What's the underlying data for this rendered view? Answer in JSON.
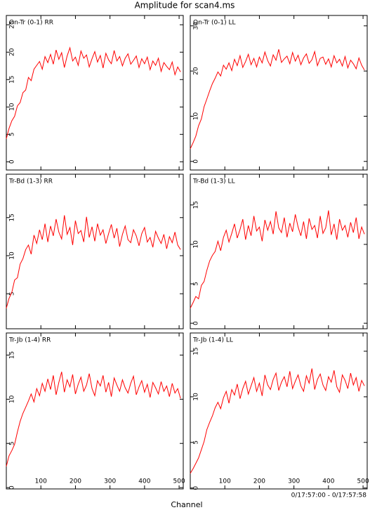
{
  "title": "Amplitude for scan4.ms",
  "xlabel": "Channel",
  "time_range": "0/17:57:00 - 0/17:57:58",
  "chart_data": [
    {
      "type": "line",
      "title": "On-Tr (0-1) RR",
      "color": "#ff0000",
      "xlim": [
        0,
        512
      ],
      "xticks": [
        100,
        200,
        300,
        400,
        500
      ],
      "show_xtick_labels": false,
      "ylim": [
        -1.5,
        26.7
      ],
      "yticks": [
        0,
        5,
        10,
        15,
        20,
        25
      ],
      "x": [
        0,
        8,
        16,
        24,
        32,
        40,
        48,
        56,
        64,
        72,
        80,
        88,
        96,
        104,
        112,
        120,
        128,
        136,
        144,
        152,
        160,
        168,
        176,
        184,
        192,
        200,
        208,
        216,
        224,
        232,
        240,
        248,
        256,
        264,
        272,
        280,
        288,
        296,
        304,
        312,
        320,
        328,
        336,
        344,
        352,
        360,
        368,
        376,
        384,
        392,
        400,
        408,
        416,
        424,
        432,
        440,
        448,
        456,
        464,
        472,
        480,
        488,
        496,
        504
      ],
      "values": [
        4.2,
        6.1,
        7.5,
        8.3,
        10.2,
        10.8,
        12.6,
        13.1,
        15.4,
        14.8,
        16.9,
        17.6,
        18.3,
        16.9,
        19.2,
        18.1,
        19.6,
        17.8,
        20.4,
        18.7,
        19.9,
        17.2,
        19.3,
        20.8,
        18.4,
        19.1,
        17.6,
        20.2,
        18.9,
        19.5,
        17.3,
        18.8,
        20.1,
        18.2,
        19.4,
        17.1,
        19.8,
        18.6,
        17.9,
        20.3,
        18.4,
        19.2,
        17.5,
        18.9,
        19.7,
        17.8,
        18.5,
        19.3,
        17.2,
        18.8,
        17.9,
        19.1,
        16.8,
        18.4,
        17.6,
        18.9,
        16.5,
        18.1,
        17.4,
        16.8,
        18.2,
        15.9,
        17.3,
        16.4
      ]
    },
    {
      "type": "line",
      "title": "On-Tr (0-1) LL",
      "color": "#ff0000",
      "xlim": [
        0,
        512
      ],
      "xticks": [
        100,
        200,
        300,
        400,
        500
      ],
      "show_xtick_labels": false,
      "ylim": [
        -1.9,
        32.3
      ],
      "yticks": [
        0,
        10,
        20,
        30
      ],
      "x": [
        0,
        8,
        16,
        24,
        32,
        40,
        48,
        56,
        64,
        72,
        80,
        88,
        96,
        104,
        112,
        120,
        128,
        136,
        144,
        152,
        160,
        168,
        176,
        184,
        192,
        200,
        208,
        216,
        224,
        232,
        240,
        248,
        256,
        264,
        272,
        280,
        288,
        296,
        304,
        312,
        320,
        328,
        336,
        344,
        352,
        360,
        368,
        376,
        384,
        392,
        400,
        408,
        416,
        424,
        432,
        440,
        448,
        456,
        464,
        472,
        480,
        488,
        496,
        504
      ],
      "values": [
        2.8,
        4.1,
        5.6,
        7.9,
        9.4,
        12.1,
        13.8,
        15.6,
        17.2,
        18.4,
        19.8,
        18.9,
        21.3,
        20.4,
        21.8,
        20.1,
        22.6,
        21.2,
        23.4,
        20.8,
        22.1,
        23.7,
        21.4,
        22.8,
        20.9,
        23.1,
        21.8,
        24.2,
        22.3,
        21.1,
        23.6,
        22.4,
        24.8,
        21.9,
        22.7,
        23.3,
        21.6,
        24.1,
        22.2,
        23.5,
        21.4,
        22.9,
        23.8,
        21.7,
        22.5,
        24.3,
        21.2,
        22.8,
        23.1,
        21.5,
        22.7,
        20.9,
        23.4,
        21.8,
        22.6,
        21.1,
        23.2,
        20.7,
        22.4,
        21.6,
        20.5,
        22.9,
        21.3,
        20.2
      ]
    },
    {
      "type": "line",
      "title": "Tr-Bd (1-3) RR",
      "color": "#ff0000",
      "xlim": [
        0,
        512
      ],
      "xticks": [
        100,
        200,
        300,
        400,
        500
      ],
      "show_xtick_labels": false,
      "ylim": [
        0.4,
        20.7
      ],
      "yticks": [
        5,
        10,
        15
      ],
      "x": [
        0,
        8,
        16,
        24,
        32,
        40,
        48,
        56,
        64,
        72,
        80,
        88,
        96,
        104,
        112,
        120,
        128,
        136,
        144,
        152,
        160,
        168,
        176,
        184,
        192,
        200,
        208,
        216,
        224,
        232,
        240,
        248,
        256,
        264,
        272,
        280,
        288,
        296,
        304,
        312,
        320,
        328,
        336,
        344,
        352,
        360,
        368,
        376,
        384,
        392,
        400,
        408,
        416,
        424,
        432,
        440,
        448,
        456,
        464,
        472,
        480,
        488,
        496,
        504
      ],
      "values": [
        3.1,
        4.4,
        5.2,
        6.8,
        7.1,
        8.9,
        9.6,
        10.8,
        11.4,
        10.2,
        12.7,
        11.6,
        13.4,
        12.1,
        14.2,
        11.8,
        13.9,
        12.6,
        14.8,
        13.1,
        12.2,
        15.3,
        12.8,
        13.7,
        11.4,
        14.6,
        12.9,
        13.3,
        11.8,
        15.1,
        12.4,
        13.8,
        11.9,
        14.2,
        12.7,
        13.4,
        11.6,
        12.9,
        14.1,
        12.3,
        13.6,
        11.2,
        12.8,
        13.9,
        12.1,
        11.7,
        13.4,
        12.6,
        11.3,
        12.9,
        13.7,
        11.8,
        12.4,
        11.1,
        13.2,
        12.3,
        11.6,
        12.8,
        10.9,
        12.5,
        11.7,
        13.1,
        11.4,
        10.8
      ]
    },
    {
      "type": "line",
      "title": "Tr-Bd (1-3) LL",
      "color": "#ff0000",
      "xlim": [
        0,
        512
      ],
      "xticks": [
        100,
        200,
        300,
        400,
        500
      ],
      "show_xtick_labels": false,
      "ylim": [
        -0.7,
        18.9
      ],
      "yticks": [
        0,
        5,
        10,
        15
      ],
      "x": [
        0,
        8,
        16,
        24,
        32,
        40,
        48,
        56,
        64,
        72,
        80,
        88,
        96,
        104,
        112,
        120,
        128,
        136,
        144,
        152,
        160,
        168,
        176,
        184,
        192,
        200,
        208,
        216,
        224,
        232,
        240,
        248,
        256,
        264,
        272,
        280,
        288,
        296,
        304,
        312,
        320,
        328,
        336,
        344,
        352,
        360,
        368,
        376,
        384,
        392,
        400,
        408,
        416,
        424,
        432,
        440,
        448,
        456,
        464,
        472,
        480,
        488,
        496,
        504
      ],
      "values": [
        1.9,
        2.6,
        3.4,
        3.1,
        4.8,
        5.3,
        6.7,
        7.9,
        8.6,
        9.1,
        10.4,
        9.2,
        10.9,
        11.8,
        10.3,
        11.4,
        12.6,
        10.8,
        11.9,
        13.2,
        10.6,
        12.4,
        11.1,
        13.6,
        11.7,
        12.2,
        10.4,
        13.1,
        11.8,
        12.9,
        11.3,
        14.2,
        12.1,
        11.5,
        13.4,
        10.9,
        12.7,
        11.6,
        13.8,
        12.2,
        11.1,
        12.9,
        10.7,
        13.3,
        11.9,
        12.4,
        10.8,
        13.6,
        11.4,
        12.1,
        14.3,
        11.2,
        12.6,
        10.6,
        13.2,
        11.8,
        12.4,
        10.9,
        12.8,
        11.5,
        13.4,
        10.7,
        12.2,
        11.3
      ]
    },
    {
      "type": "line",
      "title": "Tr-Jb (1-4) RR",
      "color": "#ff0000",
      "xlim": [
        0,
        512
      ],
      "xticks": [
        100,
        200,
        300,
        400,
        500
      ],
      "show_xtick_labels": true,
      "ylim": [
        -0.15,
        17.5
      ],
      "yticks": [
        0,
        5,
        10,
        15
      ],
      "x": [
        0,
        8,
        16,
        24,
        32,
        40,
        48,
        56,
        64,
        72,
        80,
        88,
        96,
        104,
        112,
        120,
        128,
        136,
        144,
        152,
        160,
        168,
        176,
        184,
        192,
        200,
        208,
        216,
        224,
        232,
        240,
        248,
        256,
        264,
        272,
        280,
        288,
        296,
        304,
        312,
        320,
        328,
        336,
        344,
        352,
        360,
        368,
        376,
        384,
        392,
        400,
        408,
        416,
        424,
        432,
        440,
        448,
        456,
        464,
        472,
        480,
        488,
        496,
        504
      ],
      "values": [
        2.4,
        3.6,
        4.2,
        4.9,
        6.3,
        7.5,
        8.4,
        9.1,
        9.8,
        10.6,
        9.7,
        11.2,
        10.4,
        11.8,
        10.9,
        12.3,
        11.1,
        12.7,
        10.5,
        11.9,
        13.1,
        10.8,
        12.2,
        11.4,
        12.8,
        10.6,
        11.7,
        12.5,
        10.9,
        11.6,
        12.9,
        11.2,
        10.4,
        12.1,
        11.5,
        12.7,
        10.8,
        11.9,
        10.3,
        12.4,
        11.6,
        10.9,
        12.2,
        11.3,
        10.7,
        11.8,
        12.6,
        10.5,
        11.4,
        12.1,
        10.8,
        11.7,
        10.2,
        11.9,
        11.3,
        10.6,
        12.0,
        10.9,
        11.5,
        10.3,
        11.8,
        10.7,
        11.2,
        10.1
      ]
    },
    {
      "type": "line",
      "title": "Tr-Jb (1-4) LL",
      "color": "#ff0000",
      "xlim": [
        0,
        512
      ],
      "xticks": [
        100,
        200,
        300,
        400,
        500
      ],
      "show_xtick_labels": true,
      "ylim": [
        -0.1,
        17
      ],
      "yticks": [
        0,
        5,
        10,
        15
      ],
      "x": [
        0,
        8,
        16,
        24,
        32,
        40,
        48,
        56,
        64,
        72,
        80,
        88,
        96,
        104,
        112,
        120,
        128,
        136,
        144,
        152,
        160,
        168,
        176,
        184,
        192,
        200,
        208,
        216,
        224,
        232,
        240,
        248,
        256,
        264,
        272,
        280,
        288,
        296,
        304,
        312,
        320,
        328,
        336,
        344,
        352,
        360,
        368,
        376,
        384,
        392,
        400,
        408,
        416,
        424,
        432,
        440,
        448,
        456,
        464,
        472,
        480,
        488,
        496,
        504
      ],
      "values": [
        1.6,
        2.1,
        2.7,
        3.3,
        4.2,
        5.1,
        6.4,
        7.2,
        7.9,
        8.8,
        9.4,
        8.7,
        9.9,
        10.6,
        9.3,
        10.8,
        10.2,
        11.4,
        9.8,
        10.9,
        11.7,
        10.3,
        11.2,
        12.1,
        10.6,
        11.5,
        10.1,
        12.4,
        11.3,
        10.8,
        11.9,
        12.6,
        10.7,
        11.6,
        12.2,
        11.1,
        12.8,
        10.9,
        11.7,
        12.4,
        11.2,
        10.6,
        12.3,
        11.5,
        13.1,
        10.8,
        11.9,
        12.5,
        11.3,
        10.7,
        12.2,
        11.6,
        12.9,
        11.1,
        10.5,
        12.4,
        11.8,
        10.9,
        12.6,
        11.3,
        12.1,
        10.6,
        11.8,
        11.2
      ]
    }
  ]
}
